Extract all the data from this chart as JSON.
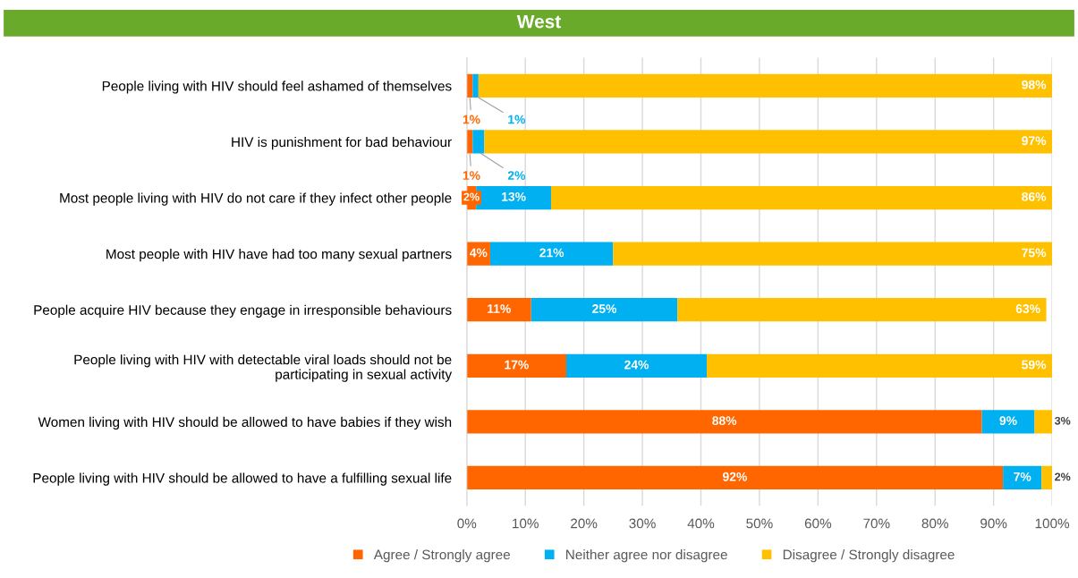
{
  "chart_data": {
    "type": "bar",
    "title": "West",
    "orientation": "horizontal",
    "stacked": true,
    "categories": [
      "People living with HIV should feel ashamed of themselves",
      "HIV is punishment for bad behaviour",
      "Most people living with HIV do not care if they infect other people",
      "Most people with HIV have had too many sexual partners",
      "People acquire HIV because they engage in irresponsible behaviours",
      "People living with HIV with detectable viral loads should not be\nparticipating in sexual activity",
      "Women living with HIV should be allowed to have babies if they wish",
      "People living with HIV should be allowed to have a fulfilling sexual life"
    ],
    "series": [
      {
        "name": "Agree / Strongly agree",
        "color": "#ff6600",
        "values": [
          1,
          1,
          1.6,
          4,
          11,
          17,
          88,
          91.6
        ],
        "value_labels": [
          "1%",
          "1%",
          "2%",
          "4%",
          "11%",
          "17%",
          "88%",
          "92%"
        ]
      },
      {
        "name": "Neither agree nor disagree",
        "color": "#00b0f0",
        "values": [
          1,
          2,
          12.8,
          21,
          25,
          24,
          9,
          6.6
        ],
        "value_labels": [
          "1%",
          "2%",
          "13%",
          "21%",
          "25%",
          "24%",
          "9%",
          "7%"
        ]
      },
      {
        "name": "Disagree / Strongly disagree",
        "color": "#ffc000",
        "values": [
          98,
          97,
          85.6,
          75,
          63,
          59,
          3,
          1.8
        ],
        "value_labels": [
          "98%",
          "97%",
          "86%",
          "75%",
          "63%",
          "59%",
          "3%",
          "2%"
        ]
      }
    ],
    "xlim": [
      0,
      100
    ],
    "xticks": [
      {
        "value": 0,
        "label": "0%"
      },
      {
        "value": 10,
        "label": "10%"
      },
      {
        "value": 20,
        "label": "20%"
      },
      {
        "value": 30,
        "label": "30%"
      },
      {
        "value": 40,
        "label": "40%"
      },
      {
        "value": 50,
        "label": "50%"
      },
      {
        "value": 60,
        "label": "60%"
      },
      {
        "value": 70,
        "label": "70%"
      },
      {
        "value": 80,
        "label": "80%"
      },
      {
        "value": 90,
        "label": "90%"
      },
      {
        "value": 100,
        "label": "100%"
      }
    ],
    "grid": "x",
    "legend": "bottom"
  }
}
